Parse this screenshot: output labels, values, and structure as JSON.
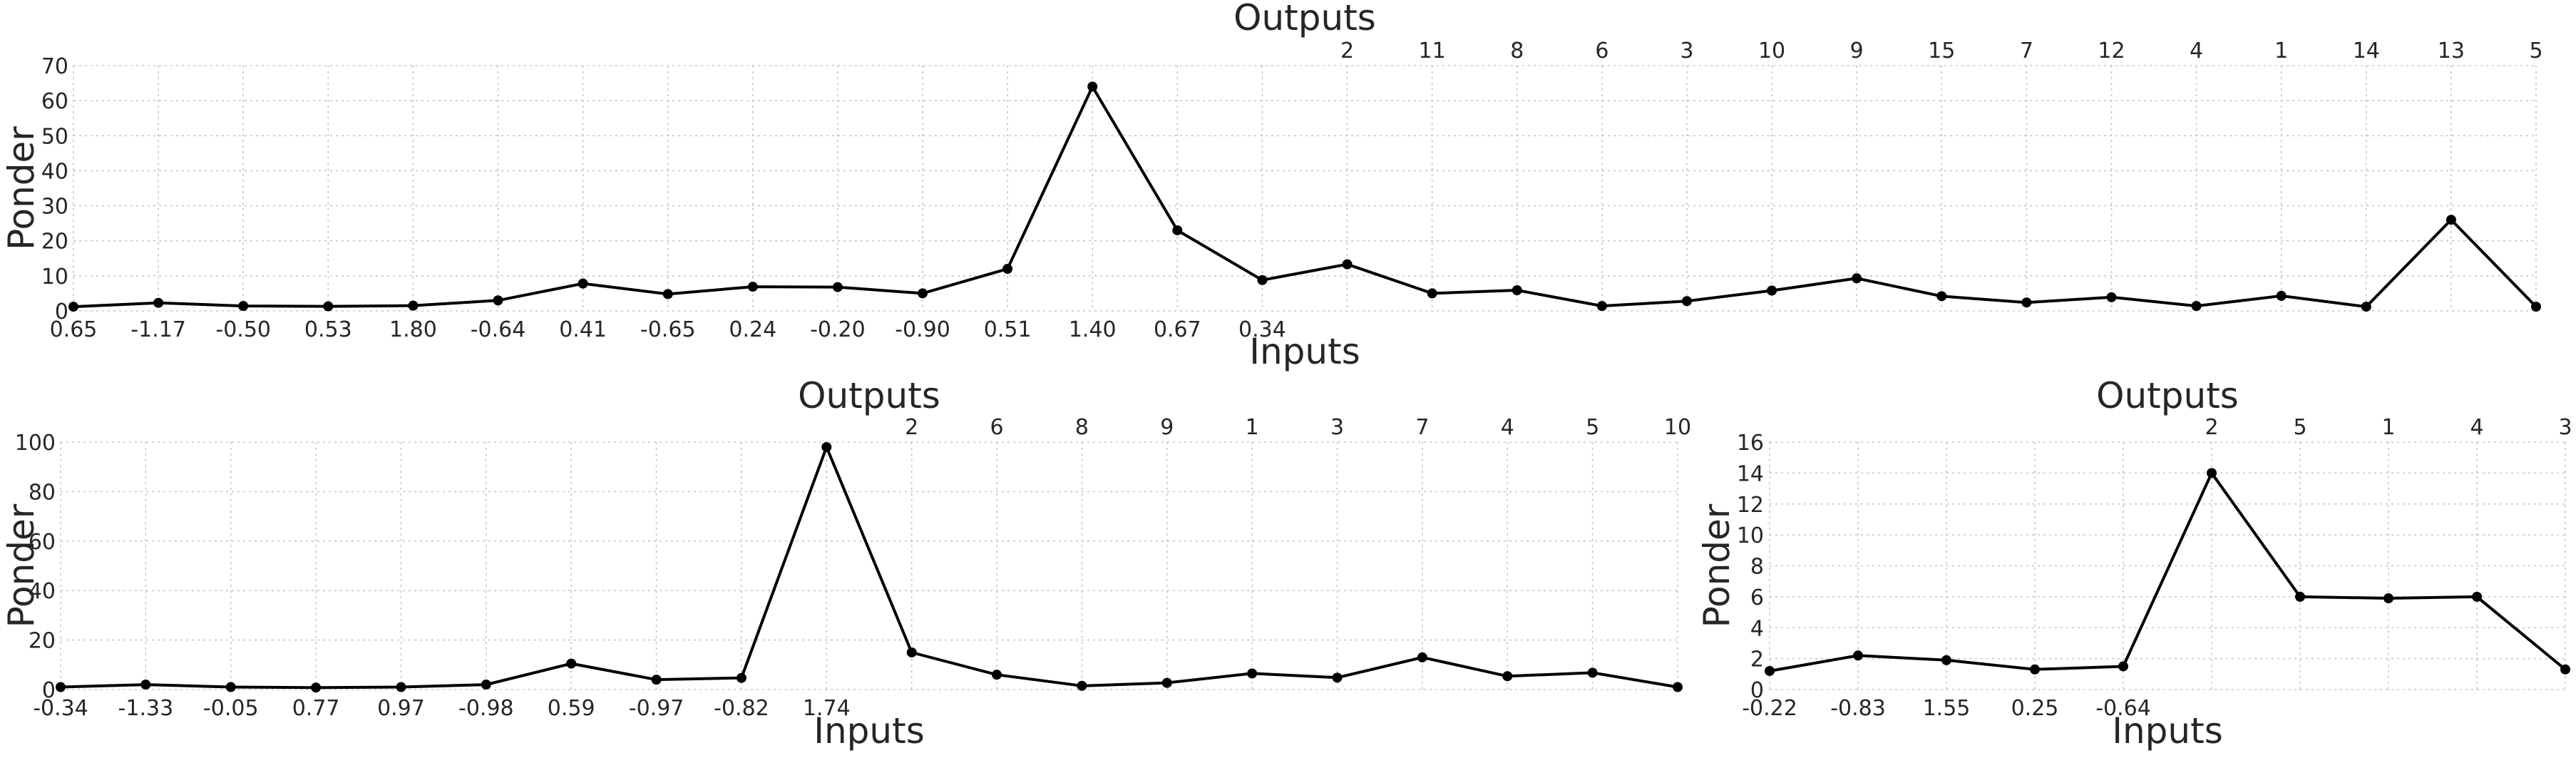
{
  "chart_data": [
    {
      "type": "line",
      "title": "Outputs",
      "xlabel": "Inputs",
      "ylabel": "Ponder",
      "ylim": [
        0,
        70
      ],
      "yticks": [
        0,
        10,
        20,
        30,
        40,
        50,
        60,
        70
      ],
      "grid": true,
      "input_labels": [
        "0.65",
        "-1.17",
        "-0.50",
        "0.53",
        "1.80",
        "-0.64",
        "0.41",
        "-0.65",
        "0.24",
        "-0.20",
        "-0.90",
        "0.51",
        "1.40",
        "0.67",
        "0.34"
      ],
      "output_labels": [
        "2",
        "11",
        "8",
        "6",
        "3",
        "10",
        "9",
        "15",
        "7",
        "12",
        "4",
        "1",
        "14",
        "13",
        "5"
      ],
      "values": [
        1.2,
        2.3,
        1.4,
        1.3,
        1.5,
        3.0,
        7.8,
        4.8,
        6.9,
        6.8,
        5.0,
        12.0,
        64.0,
        23.0,
        8.8,
        13.3,
        5.0,
        5.9,
        1.4,
        2.8,
        5.8,
        9.3,
        4.2,
        2.4,
        3.9,
        1.4,
        4.3,
        1.2,
        26.0,
        1.2
      ]
    },
    {
      "type": "line",
      "title": "Outputs",
      "xlabel": "Inputs",
      "ylabel": "Ponder",
      "ylim": [
        0,
        100
      ],
      "yticks": [
        0,
        20,
        40,
        60,
        80,
        100
      ],
      "grid": true,
      "input_labels": [
        "-0.34",
        "-1.33",
        "-0.05",
        "0.77",
        "0.97",
        "-0.98",
        "0.59",
        "-0.97",
        "-0.82",
        "1.74"
      ],
      "output_labels": [
        "2",
        "6",
        "8",
        "9",
        "1",
        "3",
        "7",
        "4",
        "5",
        "10"
      ],
      "values": [
        1.0,
        2.0,
        1.0,
        0.8,
        1.0,
        2.0,
        10.5,
        4.0,
        4.7,
        98.0,
        15.0,
        6.0,
        1.5,
        2.7,
        6.5,
        4.8,
        13.0,
        5.4,
        6.8,
        1.0
      ]
    },
    {
      "type": "line",
      "title": "Outputs",
      "xlabel": "Inputs",
      "ylabel": "Ponder",
      "ylim": [
        0,
        16
      ],
      "yticks": [
        0,
        2,
        4,
        6,
        8,
        10,
        12,
        14,
        16
      ],
      "grid": true,
      "input_labels": [
        "-0.22",
        "-0.83",
        "1.55",
        "0.25",
        "-0.64"
      ],
      "output_labels": [
        "2",
        "5",
        "1",
        "4",
        "3"
      ],
      "values": [
        1.2,
        2.2,
        1.9,
        1.3,
        1.5,
        14.0,
        6.0,
        5.9,
        6.0,
        1.3
      ]
    }
  ]
}
